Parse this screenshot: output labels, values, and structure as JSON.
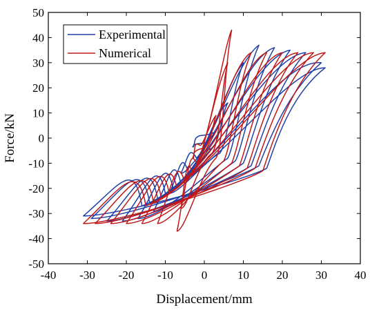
{
  "chart_data": {
    "type": "line",
    "xlabel": "Displacement/mm",
    "ylabel": "Force/kN",
    "xlim": [
      -40,
      40
    ],
    "ylim": [
      -50,
      50
    ],
    "xticks": [
      -40,
      -30,
      -20,
      -10,
      0,
      10,
      20,
      30,
      40
    ],
    "yticks": [
      -50,
      -40,
      -30,
      -20,
      -10,
      0,
      10,
      20,
      30,
      40,
      50
    ],
    "grid": false,
    "legend": "top-left",
    "series": [
      {
        "name": "Experimental",
        "color": "#1f3fa8",
        "loops": [
          [
            2,
            1.5,
            3,
            2.5,
            0,
            -2,
            -3,
            -3.5,
            -1,
            1,
            2
          ],
          [
            4,
            10,
            6,
            14,
            2,
            -4,
            -6,
            -14,
            -2,
            -8,
            4
          ],
          [
            8,
            22,
            10,
            30,
            4,
            -6,
            -9,
            -22,
            -4,
            -14,
            8
          ],
          [
            11,
            30,
            14,
            37,
            6,
            -8,
            -13,
            -29,
            -6,
            -18,
            11
          ],
          [
            15,
            33,
            18,
            36,
            8,
            -9,
            -17,
            -32,
            -8,
            -20,
            15
          ],
          [
            19,
            33,
            22,
            35,
            10,
            -10,
            -21,
            -33,
            -10,
            -22,
            19
          ],
          [
            23,
            33,
            26,
            34,
            12,
            -11,
            -25,
            -33,
            -12,
            -24,
            23
          ],
          [
            27,
            32,
            30,
            30,
            14,
            -11,
            -29,
            -32,
            -14,
            -26,
            27
          ],
          [
            30,
            28,
            31,
            28,
            16,
            -12,
            -31,
            -31,
            -16,
            -27,
            30
          ]
        ]
      },
      {
        "name": "Numerical",
        "color": "#c01818",
        "loops": [
          [
            2,
            6,
            3,
            9,
            0,
            -4,
            -3,
            -8,
            -1,
            -3,
            2
          ],
          [
            4,
            20,
            6,
            30,
            2,
            -6,
            -6,
            -28,
            -2,
            -10,
            4
          ],
          [
            7,
            36,
            7,
            43,
            3,
            -8,
            -7,
            -37,
            -3,
            -14,
            7
          ],
          [
            10,
            30,
            12,
            34,
            5,
            -9,
            -12,
            -34,
            -5,
            -18,
            10
          ],
          [
            14,
            31,
            16,
            34,
            7,
            -10,
            -16,
            -34,
            -7,
            -20,
            14
          ],
          [
            18,
            32,
            20,
            34,
            9,
            -11,
            -20,
            -34,
            -9,
            -22,
            18
          ],
          [
            22,
            33,
            24,
            34,
            11,
            -12,
            -24,
            -34,
            -11,
            -24,
            22
          ],
          [
            26,
            33,
            28,
            34,
            13,
            -12,
            -28,
            -34,
            -13,
            -26,
            26
          ],
          [
            30,
            33,
            31,
            34,
            15,
            -13,
            -31,
            -34,
            -15,
            -27,
            30
          ]
        ]
      }
    ]
  }
}
